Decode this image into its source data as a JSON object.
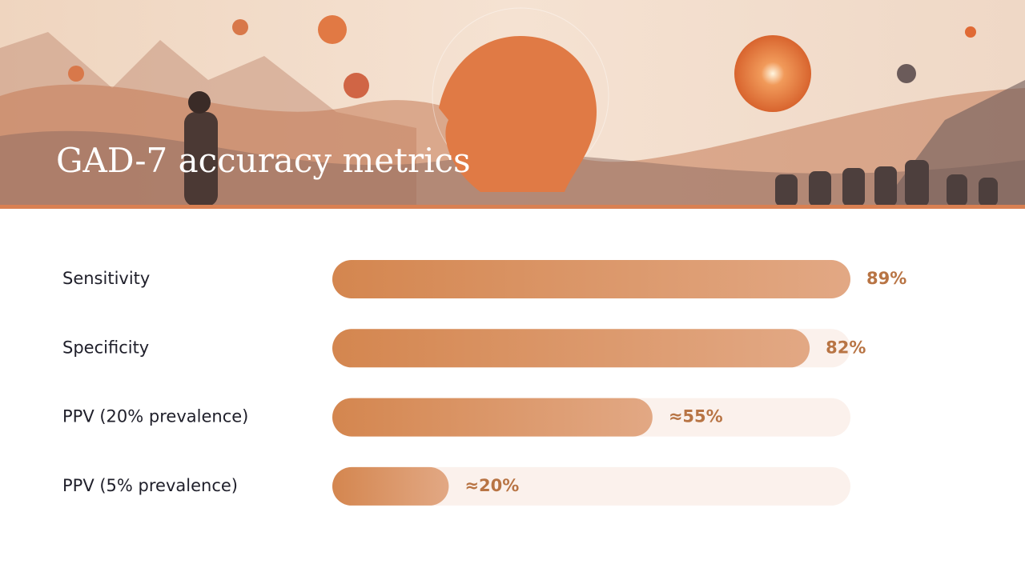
{
  "chart_data": {
    "type": "bar",
    "orientation": "horizontal",
    "title": "GAD-7 accuracy metrics",
    "categories": [
      "Sensitivity",
      "Specificity",
      "PPV (20% prevalence)",
      "PPV (5% prevalence)"
    ],
    "values": [
      89,
      82,
      55,
      20
    ],
    "value_labels": [
      "89%",
      "82%",
      "≈55%",
      "≈20%"
    ],
    "color": "#d98a58"
  }
}
